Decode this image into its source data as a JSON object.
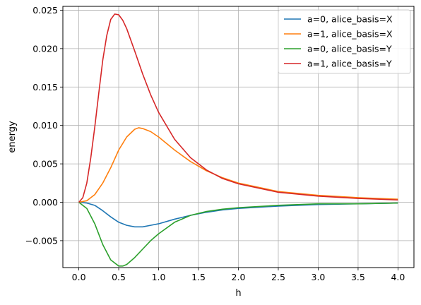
{
  "chart_data": {
    "type": "line",
    "title": "",
    "xlabel": "h",
    "ylabel": "energy",
    "xlim": [
      -0.2,
      4.2
    ],
    "ylim": [
      -0.0085,
      0.0255
    ],
    "xticks": [
      0.0,
      0.5,
      1.0,
      1.5,
      2.0,
      2.5,
      3.0,
      3.5,
      4.0
    ],
    "xtick_labels": [
      "0.0",
      "0.5",
      "1.0",
      "1.5",
      "2.0",
      "2.5",
      "3.0",
      "3.5",
      "4.0"
    ],
    "yticks": [
      -0.005,
      0.0,
      0.005,
      0.01,
      0.015,
      0.02,
      0.025
    ],
    "ytick_labels": [
      "−0.005",
      "0.000",
      "0.005",
      "0.010",
      "0.015",
      "0.020",
      "0.025"
    ],
    "grid": true,
    "legend_position": "top-right",
    "series": [
      {
        "name": "a=0, alice_basis=X",
        "color": "#1f77b4",
        "x": [
          0.0,
          0.1,
          0.2,
          0.3,
          0.4,
          0.5,
          0.6,
          0.7,
          0.75,
          0.8,
          0.9,
          1.0,
          1.2,
          1.4,
          1.6,
          1.8,
          2.0,
          2.5,
          3.0,
          3.5,
          4.0
        ],
        "y": [
          0.0,
          -0.0001,
          -0.0004,
          -0.0011,
          -0.0019,
          -0.0026,
          -0.003,
          -0.0032,
          -0.0032,
          -0.0032,
          -0.003,
          -0.0028,
          -0.0022,
          -0.0017,
          -0.0013,
          -0.001,
          -0.0008,
          -0.0005,
          -0.0003,
          -0.0002,
          -0.0001
        ]
      },
      {
        "name": "a=1, alice_basis=X",
        "color": "#ff7f0e",
        "x": [
          0.0,
          0.1,
          0.2,
          0.3,
          0.4,
          0.5,
          0.6,
          0.7,
          0.75,
          0.8,
          0.9,
          1.0,
          1.2,
          1.4,
          1.6,
          1.8,
          2.0,
          2.5,
          3.0,
          3.5,
          4.0
        ],
        "y": [
          0.0,
          0.0002,
          0.001,
          0.0025,
          0.0045,
          0.0068,
          0.0085,
          0.0095,
          0.0097,
          0.0096,
          0.0092,
          0.0085,
          0.0068,
          0.0053,
          0.0041,
          0.0032,
          0.0025,
          0.0014,
          0.0009,
          0.0006,
          0.0004
        ]
      },
      {
        "name": "a=0, alice_basis=Y",
        "color": "#2ca02c",
        "x": [
          0.0,
          0.1,
          0.2,
          0.3,
          0.4,
          0.5,
          0.55,
          0.6,
          0.7,
          0.8,
          0.9,
          1.0,
          1.2,
          1.4,
          1.6,
          1.8,
          2.0,
          2.5,
          3.0,
          3.5,
          4.0
        ],
        "y": [
          0.0,
          -0.0008,
          -0.0028,
          -0.0055,
          -0.0075,
          -0.0083,
          -0.0083,
          -0.0081,
          -0.0072,
          -0.0061,
          -0.005,
          -0.0041,
          -0.0026,
          -0.0017,
          -0.0012,
          -0.0009,
          -0.0007,
          -0.0004,
          -0.0002,
          -0.0002,
          -0.0001
        ]
      },
      {
        "name": "a=1, alice_basis=Y",
        "color": "#d62728",
        "x": [
          0.0,
          0.05,
          0.1,
          0.15,
          0.2,
          0.25,
          0.3,
          0.35,
          0.4,
          0.45,
          0.5,
          0.55,
          0.6,
          0.7,
          0.8,
          0.9,
          1.0,
          1.2,
          1.4,
          1.6,
          1.8,
          2.0,
          2.5,
          3.0,
          3.5,
          4.0
        ],
        "y": [
          0.0,
          0.0006,
          0.0025,
          0.0058,
          0.0098,
          0.0142,
          0.0185,
          0.0217,
          0.0238,
          0.0245,
          0.0244,
          0.0237,
          0.0226,
          0.0197,
          0.0167,
          0.014,
          0.0117,
          0.0082,
          0.0058,
          0.0042,
          0.0031,
          0.0024,
          0.0013,
          0.0008,
          0.0005,
          0.0003
        ]
      }
    ]
  }
}
